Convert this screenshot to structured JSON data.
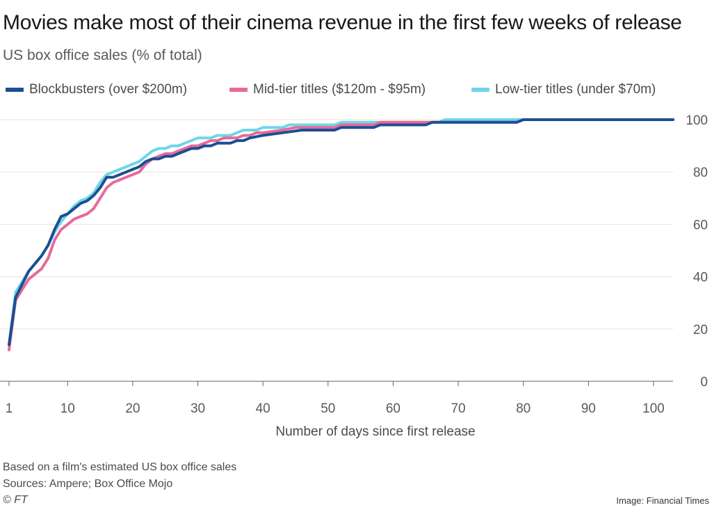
{
  "header": {
    "title": "Movies make most of their cinema revenue in the first few weeks of release",
    "subtitle": "US box office sales (% of total)"
  },
  "legend": [
    {
      "label": "Blockbusters (over $200m)",
      "color": "#1b4f92"
    },
    {
      "label": "Mid-tier titles ($120m - $95m)",
      "color": "#e8699a"
    },
    {
      "label": "Low-tier titles (under $70m)",
      "color": "#6fd6e8"
    }
  ],
  "footer": {
    "note": "Based on a film's estimated US box office sales",
    "sources": "Sources: Ampere; Box Office Mojo",
    "copyright": "© FT",
    "credit": "Image: Financial Times"
  },
  "chart_data": {
    "type": "line",
    "title": "Movies make most of their cinema revenue in the first few weeks of release",
    "subtitle": "US box office sales (% of total)",
    "xlabel": "Number of days since first release",
    "ylabel": "US box office sales (% of total)",
    "xlim": [
      1,
      103
    ],
    "ylim": [
      0,
      100
    ],
    "xticks": [
      1,
      10,
      20,
      30,
      40,
      50,
      60,
      70,
      80,
      90,
      100
    ],
    "yticks": [
      0,
      20,
      40,
      60,
      80,
      100
    ],
    "y_axis_side": "right",
    "grid": "horizontal",
    "legend_position": "top",
    "series": [
      {
        "name": "Blockbusters (over $200m)",
        "color": "#1b4f92",
        "points": [
          [
            1,
            14
          ],
          [
            2,
            32
          ],
          [
            3,
            37
          ],
          [
            4,
            42
          ],
          [
            5,
            45
          ],
          [
            6,
            48
          ],
          [
            7,
            52
          ],
          [
            8,
            58
          ],
          [
            9,
            63
          ],
          [
            10,
            64
          ],
          [
            11,
            66
          ],
          [
            12,
            68
          ],
          [
            13,
            69
          ],
          [
            14,
            71
          ],
          [
            15,
            74
          ],
          [
            16,
            78
          ],
          [
            17,
            78
          ],
          [
            18,
            79
          ],
          [
            19,
            80
          ],
          [
            20,
            81
          ],
          [
            21,
            82
          ],
          [
            22,
            84
          ],
          [
            23,
            85
          ],
          [
            24,
            85
          ],
          [
            25,
            86
          ],
          [
            26,
            86
          ],
          [
            27,
            87
          ],
          [
            28,
            88
          ],
          [
            29,
            89
          ],
          [
            30,
            89
          ],
          [
            31,
            90
          ],
          [
            32,
            90
          ],
          [
            33,
            91
          ],
          [
            35,
            91
          ],
          [
            36,
            92
          ],
          [
            37,
            92
          ],
          [
            38,
            93
          ],
          [
            40,
            94
          ],
          [
            43,
            95
          ],
          [
            46,
            96
          ],
          [
            51,
            96
          ],
          [
            52,
            97
          ],
          [
            57,
            97
          ],
          [
            58,
            98
          ],
          [
            65,
            98
          ],
          [
            66,
            99
          ],
          [
            79,
            99
          ],
          [
            80,
            100
          ],
          [
            103,
            100
          ]
        ]
      },
      {
        "name": "Mid-tier titles ($120m - $95m)",
        "color": "#e8699a",
        "points": [
          [
            1,
            12
          ],
          [
            2,
            31
          ],
          [
            3,
            35
          ],
          [
            4,
            39
          ],
          [
            5,
            41
          ],
          [
            6,
            43
          ],
          [
            7,
            47
          ],
          [
            8,
            54
          ],
          [
            9,
            58
          ],
          [
            10,
            60
          ],
          [
            11,
            62
          ],
          [
            12,
            63
          ],
          [
            13,
            64
          ],
          [
            14,
            66
          ],
          [
            15,
            70
          ],
          [
            16,
            74
          ],
          [
            17,
            76
          ],
          [
            18,
            77
          ],
          [
            19,
            78
          ],
          [
            20,
            79
          ],
          [
            21,
            80
          ],
          [
            22,
            83
          ],
          [
            23,
            85
          ],
          [
            24,
            86
          ],
          [
            25,
            87
          ],
          [
            26,
            87
          ],
          [
            27,
            88
          ],
          [
            28,
            89
          ],
          [
            29,
            90
          ],
          [
            30,
            90
          ],
          [
            31,
            91
          ],
          [
            32,
            92
          ],
          [
            33,
            92
          ],
          [
            34,
            93
          ],
          [
            35,
            93
          ],
          [
            36,
            93
          ],
          [
            37,
            94
          ],
          [
            38,
            94
          ],
          [
            39,
            95
          ],
          [
            40,
            95
          ],
          [
            43,
            96
          ],
          [
            45,
            97
          ],
          [
            51,
            97
          ],
          [
            52,
            98
          ],
          [
            57,
            98
          ],
          [
            58,
            99
          ],
          [
            79,
            99
          ],
          [
            80,
            100
          ],
          [
            103,
            100
          ]
        ]
      },
      {
        "name": "Low-tier titles (under $70m)",
        "color": "#6fd6e8",
        "points": [
          [
            1,
            14
          ],
          [
            2,
            34
          ],
          [
            3,
            38
          ],
          [
            4,
            42
          ],
          [
            5,
            45
          ],
          [
            6,
            48
          ],
          [
            7,
            52
          ],
          [
            8,
            57
          ],
          [
            9,
            61
          ],
          [
            10,
            64
          ],
          [
            11,
            67
          ],
          [
            12,
            69
          ],
          [
            13,
            70
          ],
          [
            14,
            72
          ],
          [
            15,
            76
          ],
          [
            16,
            79
          ],
          [
            17,
            80
          ],
          [
            18,
            81
          ],
          [
            19,
            82
          ],
          [
            20,
            83
          ],
          [
            21,
            84
          ],
          [
            22,
            86
          ],
          [
            23,
            88
          ],
          [
            24,
            89
          ],
          [
            25,
            89
          ],
          [
            26,
            90
          ],
          [
            27,
            90
          ],
          [
            28,
            91
          ],
          [
            29,
            92
          ],
          [
            30,
            93
          ],
          [
            31,
            93
          ],
          [
            32,
            93
          ],
          [
            33,
            94
          ],
          [
            35,
            94
          ],
          [
            36,
            95
          ],
          [
            37,
            96
          ],
          [
            39,
            96
          ],
          [
            40,
            97
          ],
          [
            43,
            97
          ],
          [
            44,
            98
          ],
          [
            51,
            98
          ],
          [
            52,
            99
          ],
          [
            67,
            99
          ],
          [
            68,
            100
          ],
          [
            103,
            100
          ]
        ]
      }
    ]
  }
}
